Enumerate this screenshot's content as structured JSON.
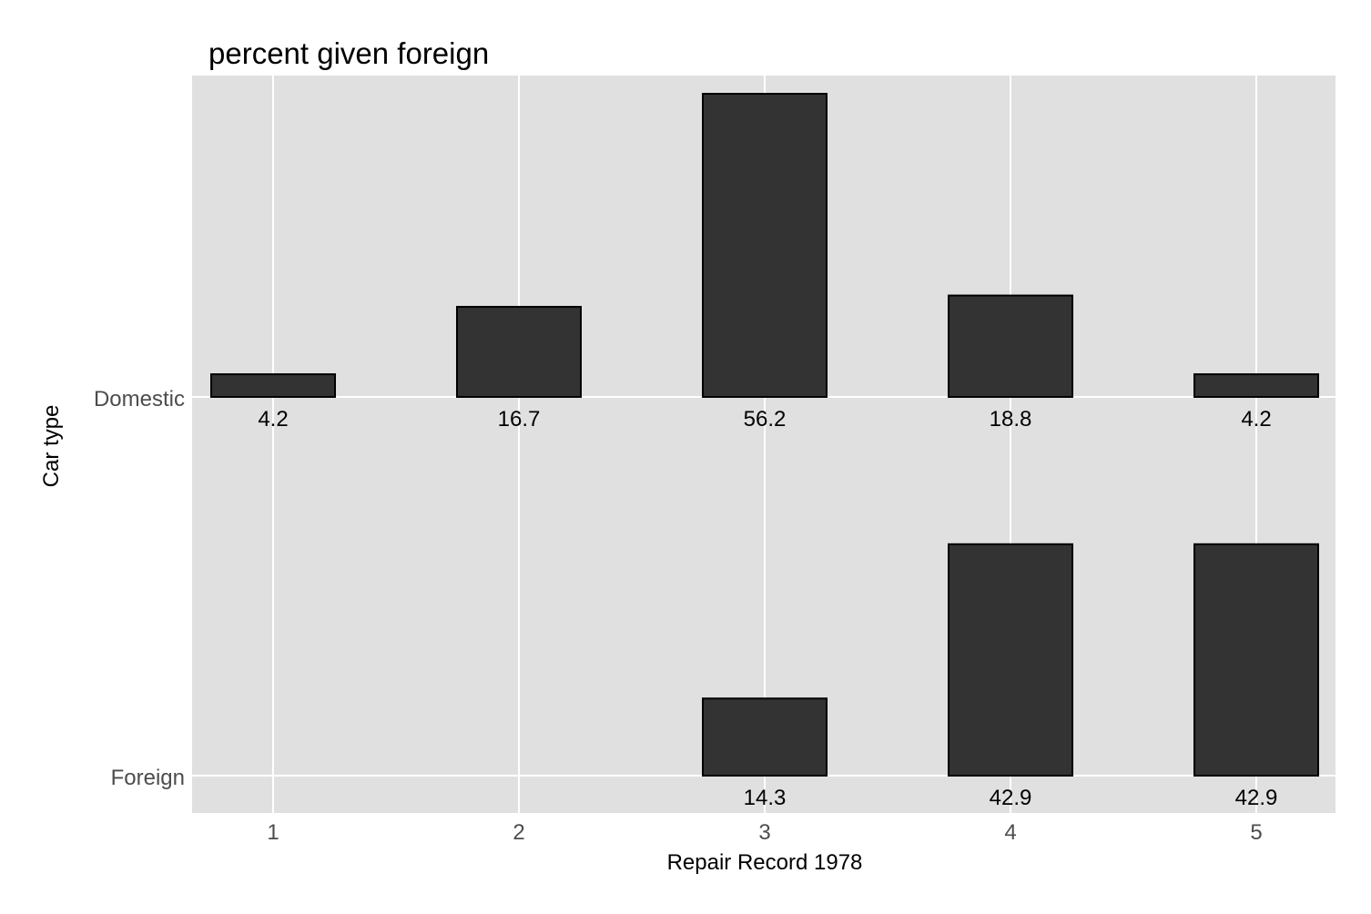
{
  "chart_data": {
    "type": "bar",
    "title": "percent given foreign",
    "xlabel": "Repair Record 1978",
    "ylabel": "Car type",
    "categories": [
      "1",
      "2",
      "3",
      "4",
      "5"
    ],
    "series": [
      {
        "name": "Domestic",
        "values": [
          4.2,
          16.7,
          56.2,
          18.8,
          4.2
        ],
        "labels": [
          "4.2",
          "16.7",
          "56.2",
          "18.8",
          "4.2"
        ]
      },
      {
        "name": "Foreign",
        "values": [
          0,
          0,
          14.3,
          42.9,
          42.9
        ],
        "labels": [
          "",
          "",
          "14.3",
          "42.9",
          "42.9"
        ]
      }
    ],
    "ylim": [
      0,
      56.2
    ],
    "grid": true,
    "panel_background": "#e0e0e0",
    "bar_color": "#333333",
    "bar_outline": "#000000",
    "grid_color": "#ffffff"
  }
}
